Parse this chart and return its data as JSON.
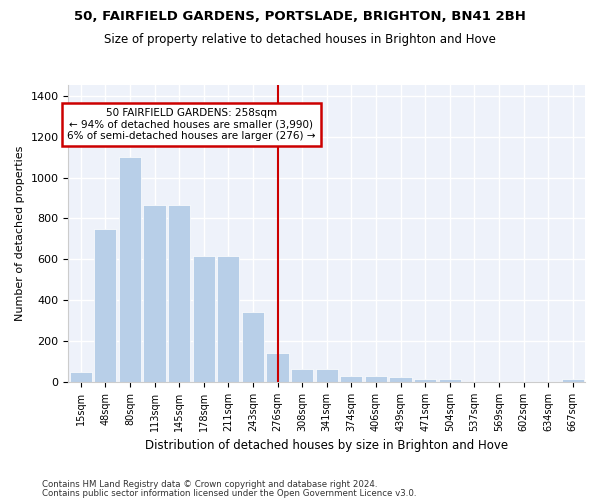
{
  "title1": "50, FAIRFIELD GARDENS, PORTSLADE, BRIGHTON, BN41 2BH",
  "title2": "Size of property relative to detached houses in Brighton and Hove",
  "xlabel": "Distribution of detached houses by size in Brighton and Hove",
  "ylabel": "Number of detached properties",
  "footer1": "Contains HM Land Registry data © Crown copyright and database right 2024.",
  "footer2": "Contains public sector information licensed under the Open Government Licence v3.0.",
  "categories": [
    "15sqm",
    "48sqm",
    "80sqm",
    "113sqm",
    "145sqm",
    "178sqm",
    "211sqm",
    "243sqm",
    "276sqm",
    "308sqm",
    "341sqm",
    "374sqm",
    "406sqm",
    "439sqm",
    "471sqm",
    "504sqm",
    "537sqm",
    "569sqm",
    "602sqm",
    "634sqm",
    "667sqm"
  ],
  "heights": [
    50,
    750,
    1100,
    865,
    865,
    615,
    615,
    345,
    140,
    65,
    65,
    30,
    30,
    25,
    15,
    15,
    0,
    0,
    0,
    0,
    15
  ],
  "property_label": "50 FAIRFIELD GARDENS: 258sqm",
  "pct_smaller": 94,
  "n_smaller": 3990,
  "pct_larger": 6,
  "n_larger": 276,
  "bar_color": "#b8cfe8",
  "vline_color": "#cc0000",
  "annotation_box_color": "#cc0000",
  "background_color": "#eef2fa",
  "ylim": [
    0,
    1450
  ],
  "vline_index": 8
}
